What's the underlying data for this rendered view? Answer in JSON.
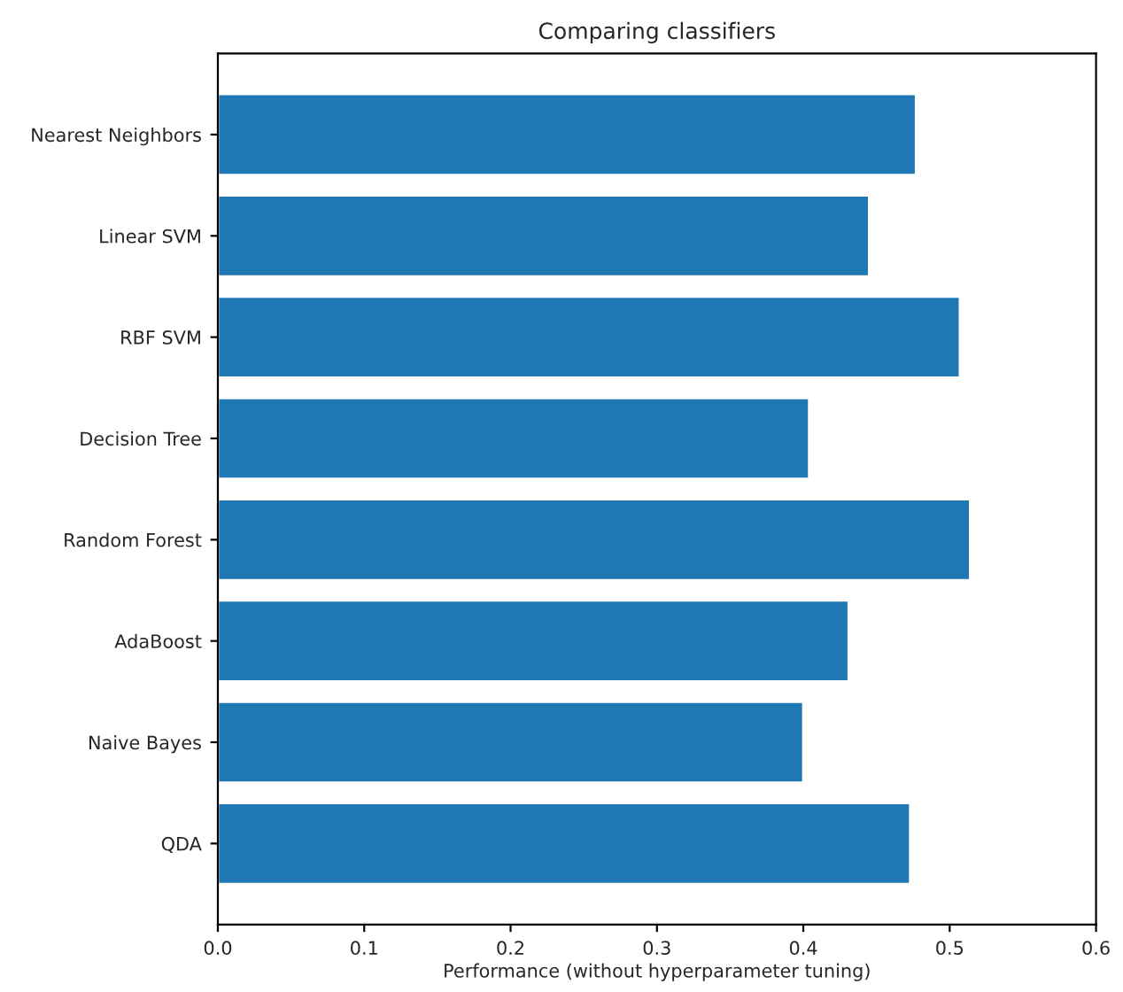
{
  "chart_data": {
    "type": "bar",
    "orientation": "horizontal",
    "title": "Comparing classifiers",
    "xlabel": "Performance (without hyperparameter tuning)",
    "categories": [
      "Nearest Neighbors",
      "Linear SVM",
      "RBF SVM",
      "Decision Tree",
      "Random Forest",
      "AdaBoost",
      "Naive Bayes",
      "QDA"
    ],
    "values": [
      0.477,
      0.445,
      0.507,
      0.404,
      0.514,
      0.431,
      0.4,
      0.473
    ],
    "color": "#1f77b4",
    "xlim": [
      0,
      0.6
    ],
    "xticks": [
      {
        "value": 0,
        "label": "0.0"
      },
      0.1,
      0.2,
      0.3,
      0.4,
      0.5,
      0.6
    ],
    "grid": false
  }
}
